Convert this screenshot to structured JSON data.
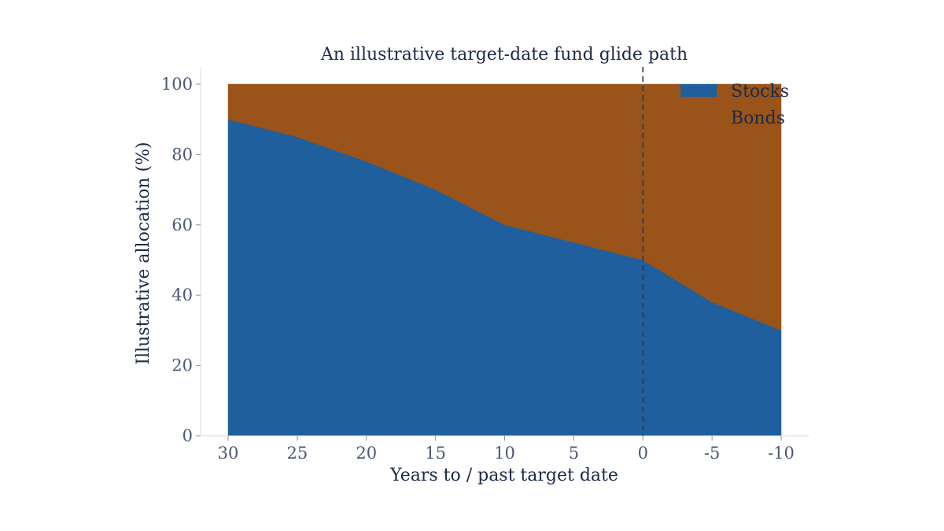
{
  "chart_data": {
    "type": "area",
    "stacked": true,
    "title": "An illustrative target-date fund glide path",
    "xlabel": "Years to / past target date",
    "ylabel": "Illustrative allocation (%)",
    "x": [
      30,
      25,
      20,
      15,
      10,
      5,
      0,
      -5,
      -10
    ],
    "x_tick_labels": [
      "30",
      "25",
      "20",
      "15",
      "10",
      "5",
      "0",
      "-5",
      "-10"
    ],
    "y_ticks": [
      0,
      20,
      40,
      60,
      80,
      100
    ],
    "y_tick_labels": [
      "0",
      "20",
      "40",
      "60",
      "80",
      "100"
    ],
    "xlim": [
      32,
      -12
    ],
    "ylim": [
      0,
      100
    ],
    "x_reversed": true,
    "grid": false,
    "series": [
      {
        "name": "Stocks",
        "color": "#1f5f9e",
        "values": [
          90,
          85,
          78,
          70,
          60,
          55,
          50,
          38,
          30
        ]
      },
      {
        "name": "Bonds",
        "color": "#9a5318",
        "values": [
          10,
          15,
          22,
          30,
          40,
          45,
          50,
          62,
          70
        ]
      }
    ],
    "reference_line": {
      "x": 0,
      "style": "dashed",
      "color": "#2e3b55"
    },
    "legend": {
      "position": "top-right",
      "entries": [
        "Stocks",
        "Bonds"
      ]
    }
  }
}
